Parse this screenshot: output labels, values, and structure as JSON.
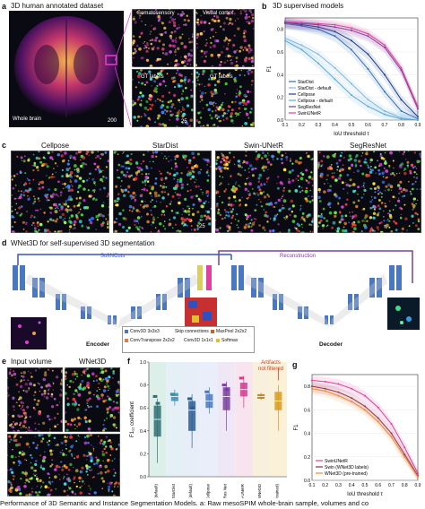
{
  "panel_letters": {
    "a": "a",
    "b": "b",
    "c": "c",
    "d": "d",
    "e": "e",
    "f": "f",
    "g": "g"
  },
  "panel_a": {
    "title": "3D human annotated dataset",
    "whole_brain": "Whole brain",
    "scale": "200",
    "insets": [
      "Somatosensory",
      "Visual cortex",
      "GT labels",
      "GT labels"
    ],
    "scale_small": "25"
  },
  "panel_b": {
    "title": "3D supervised models"
  },
  "panel_c": {
    "models": [
      "Cellpose",
      "StarDist",
      "Swin-UNetR",
      "SegResNet"
    ],
    "scale_small": "25"
  },
  "panel_d": {
    "title": "WNet3D for self-supervised 3D segmentation",
    "softncuts": "SoftNCuts",
    "reconstruction": "Reconstruction",
    "encoder": "Encoder",
    "decoder": "Decoder",
    "legend": [
      "Conv3D 3x3x3",
      "Skip connections",
      "MaxPool 2x2x2",
      "ConvTranspose 2x2x2",
      "Conv3D 1x1x1",
      "Softmax"
    ]
  },
  "panel_e": {
    "input": "Input volume",
    "wnet": "WNet3D"
  },
  "panel_f": {
    "annotation_line1": "Artifacts",
    "annotation_line2": "not filtered"
  },
  "chart_data": [
    {
      "type": "line",
      "panel": "b",
      "title": "3D supervised models",
      "xlabel": "IoU threshold τ",
      "ylabel": "F1",
      "x": [
        0.1,
        0.2,
        0.3,
        0.4,
        0.5,
        0.6,
        0.7,
        0.8,
        0.9
      ],
      "xticks": [
        "0.1",
        "0.2",
        "0.3",
        "0.4",
        "0.5",
        "0.6",
        "0.7",
        "0.8",
        "0.9"
      ],
      "ylim": [
        0.0,
        0.9
      ],
      "yticks": [
        "0.0",
        "0.2",
        "0.4",
        "0.6",
        "0.8"
      ],
      "legend_position": "lower-left",
      "series": [
        {
          "name": "StarDist",
          "color": "#2c6fbb",
          "values": [
            0.85,
            0.83,
            0.8,
            0.74,
            0.62,
            0.45,
            0.25,
            0.08,
            0.01
          ]
        },
        {
          "name": "StarDist - default",
          "color": "#7fb6e6",
          "values": [
            0.72,
            0.66,
            0.58,
            0.46,
            0.32,
            0.18,
            0.08,
            0.02,
            0.0
          ]
        },
        {
          "name": "Cellpose",
          "color": "#1a3f8a",
          "values": [
            0.86,
            0.84,
            0.82,
            0.78,
            0.7,
            0.58,
            0.4,
            0.18,
            0.03
          ]
        },
        {
          "name": "Cellpose - default",
          "color": "#5aa8d8",
          "values": [
            0.7,
            0.62,
            0.5,
            0.36,
            0.22,
            0.12,
            0.05,
            0.01,
            0.0
          ]
        },
        {
          "name": "SegResNet",
          "color": "#6a3fa0",
          "values": [
            0.86,
            0.85,
            0.84,
            0.82,
            0.79,
            0.74,
            0.64,
            0.44,
            0.1
          ]
        },
        {
          "name": "SwinUNetR",
          "color": "#e0409a",
          "values": [
            0.87,
            0.86,
            0.85,
            0.84,
            0.81,
            0.76,
            0.66,
            0.46,
            0.12
          ]
        }
      ]
    },
    {
      "type": "box",
      "panel": "f",
      "ylabel": "F1₁₂ coefficient",
      "categories": [
        "StarDist (default)",
        "StarDist",
        "Cellpose (default)",
        "Cellpose",
        "SegRes Net",
        "Swin-UNetR",
        "WNet3D",
        "WNet3D (pretrained)"
      ],
      "ylim": [
        0.0,
        1.0
      ],
      "yticks": [
        "0.0",
        "0.2",
        "0.4",
        "0.6",
        "0.8",
        "1.0"
      ],
      "groups": [
        {
          "color": "#2e6f73",
          "bg": "#dcefe9",
          "median": 0.5,
          "q1": 0.35,
          "q3": 0.62,
          "low": 0.12,
          "high": 0.68,
          "extra": [
            0.7,
            0.64
          ]
        },
        {
          "color": "#3a8fb0",
          "bg": "#e5f0f6",
          "median": 0.7,
          "q1": 0.66,
          "q3": 0.73,
          "low": 0.62,
          "high": 0.76,
          "extra": [
            0.72
          ]
        },
        {
          "color": "#2b5c8f",
          "bg": "#e7eef7",
          "median": 0.58,
          "q1": 0.4,
          "q3": 0.66,
          "low": 0.25,
          "high": 0.72,
          "extra": [
            0.68,
            0.6
          ]
        },
        {
          "color": "#4a78c0",
          "bg": "#eaeefa",
          "median": 0.66,
          "q1": 0.6,
          "q3": 0.72,
          "low": 0.55,
          "high": 0.78,
          "extra": [
            0.74
          ]
        },
        {
          "color": "#7a3fa0",
          "bg": "#efe6f6",
          "median": 0.7,
          "q1": 0.58,
          "q3": 0.78,
          "low": 0.4,
          "high": 0.83,
          "extra": [
            0.8,
            0.76
          ]
        },
        {
          "color": "#d8388f",
          "bg": "#f8e4ef",
          "median": 0.76,
          "q1": 0.7,
          "q3": 0.82,
          "low": 0.6,
          "high": 0.88,
          "extra": [
            0.86
          ]
        },
        {
          "color": "#b07a10",
          "bg": "#f8f0dc",
          "median": 0.7,
          "q1": 0.68,
          "q3": 0.72,
          "low": 0.67,
          "high": 0.73,
          "extra": []
        },
        {
          "color": "#d69a20",
          "bg": "#fbf1d8",
          "median": 0.66,
          "q1": 0.58,
          "q3": 0.74,
          "low": 0.4,
          "high": 0.8,
          "extra": []
        }
      ]
    },
    {
      "type": "line",
      "panel": "g",
      "xlabel": "IoU threshold τ",
      "ylabel": "F1",
      "x": [
        0.1,
        0.2,
        0.3,
        0.4,
        0.5,
        0.6,
        0.7,
        0.8,
        0.9
      ],
      "xticks": [
        "0.1",
        "0.2",
        "0.3",
        "0.4",
        "0.5",
        "0.6",
        "0.7",
        "0.8",
        "0.9"
      ],
      "ylim": [
        0.0,
        0.9
      ],
      "yticks": [
        "0.0",
        "0.2",
        "0.4",
        "0.6",
        "0.8"
      ],
      "legend_position": "lower-left",
      "series": [
        {
          "name": "SwinUNetR",
          "color": "#e0409a",
          "values": [
            0.85,
            0.84,
            0.82,
            0.78,
            0.72,
            0.62,
            0.48,
            0.28,
            0.06
          ]
        },
        {
          "name": "Swin (WNet3D labels)",
          "color": "#8a2b5e",
          "values": [
            0.8,
            0.78,
            0.75,
            0.7,
            0.63,
            0.53,
            0.4,
            0.22,
            0.04
          ]
        },
        {
          "name": "WNet3D (pre-trained)",
          "color": "#f08a30",
          "values": [
            0.78,
            0.76,
            0.72,
            0.67,
            0.6,
            0.5,
            0.37,
            0.2,
            0.03
          ]
        }
      ]
    }
  ],
  "caption": "Performance of 3D Semantic and Instance Segmentation Models. a: Raw mesoSPIM whole-brain sample, volumes and co"
}
